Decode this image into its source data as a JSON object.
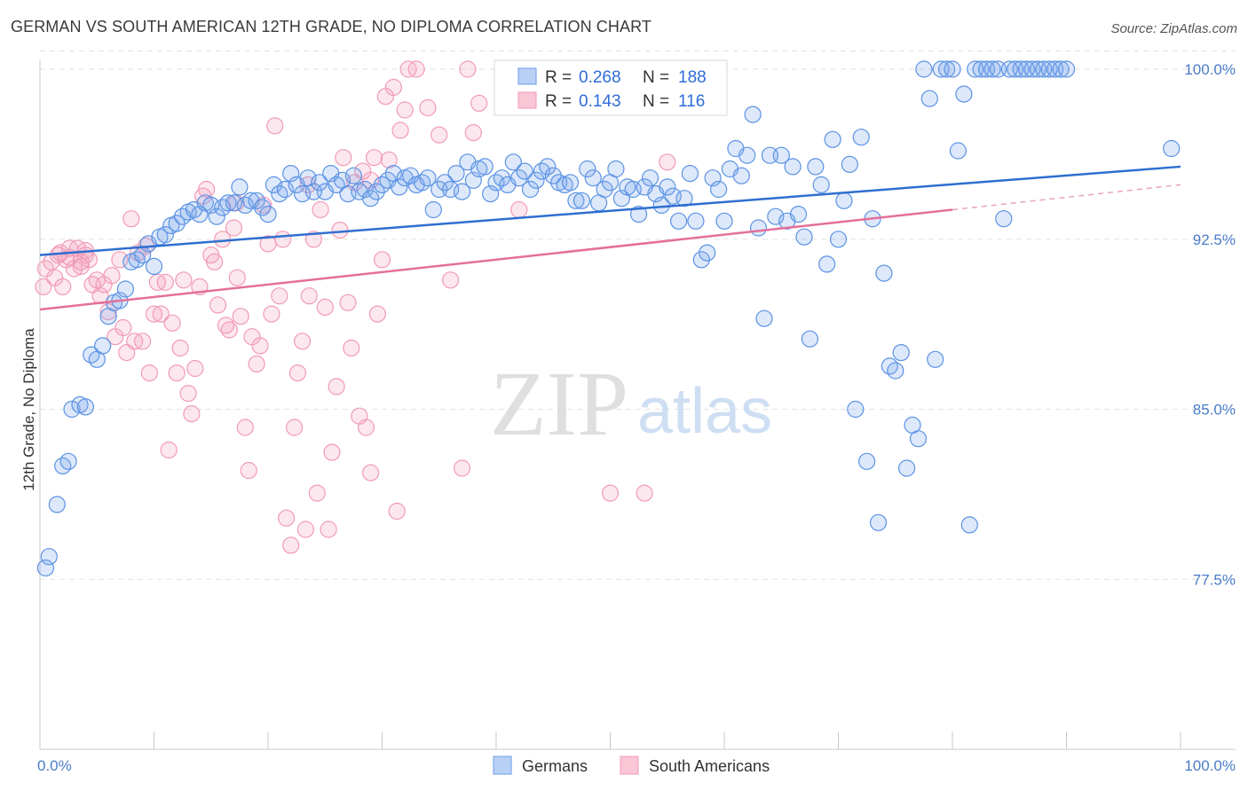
{
  "title": "GERMAN VS SOUTH AMERICAN 12TH GRADE, NO DIPLOMA CORRELATION CHART",
  "source": "Source: ZipAtlas.com",
  "watermark": {
    "zip": "ZIP",
    "atlas": "atlas"
  },
  "legend_box": [
    {
      "r_label": "R =",
      "r_value": "0.268",
      "n_label": "N =",
      "n_value": "188"
    },
    {
      "r_label": "R =",
      "r_value": "0.143",
      "n_label": "N =",
      "n_value": "116"
    }
  ],
  "chart_data": {
    "type": "scatter",
    "title": "GERMAN VS SOUTH AMERICAN 12TH GRADE, NO DIPLOMA CORRELATION CHART",
    "xlabel": "",
    "ylabel": "12th Grade, No Diploma",
    "xlim": [
      0,
      100
    ],
    "ylim": [
      70,
      100.5
    ],
    "x_tick_labels": [
      "0.0%",
      "100.0%"
    ],
    "y_ticks": [
      77.5,
      85.0,
      92.5,
      100.0
    ],
    "y_tick_labels": [
      "77.5%",
      "85.0%",
      "92.5%",
      "100.0%"
    ],
    "grid": true,
    "legend_position": "bottom",
    "colors": {
      "Germans": "#6a9ee8",
      "South Americans": "#f19bb6",
      "Germans_line": "#2e6fd0",
      "South Americans_line": "#e46f9a"
    },
    "series": [
      {
        "name": "Germans",
        "R": 0.268,
        "N": 188,
        "trend": {
          "x0": 0,
          "y0": 91.8,
          "x1": 100,
          "y1": 95.7
        },
        "points": [
          [
            0.5,
            78.0
          ],
          [
            0.8,
            78.5
          ],
          [
            1.5,
            80.8
          ],
          [
            2.0,
            82.5
          ],
          [
            2.5,
            82.7
          ],
          [
            2.8,
            85.0
          ],
          [
            3.5,
            85.2
          ],
          [
            4.0,
            85.1
          ],
          [
            4.5,
            87.4
          ],
          [
            5.0,
            87.2
          ],
          [
            5.5,
            87.8
          ],
          [
            6.0,
            89.1
          ],
          [
            6.5,
            89.7
          ],
          [
            7.0,
            89.8
          ],
          [
            7.5,
            90.3
          ],
          [
            8.0,
            91.5
          ],
          [
            8.5,
            91.6
          ],
          [
            9.0,
            91.8
          ],
          [
            9.5,
            92.3
          ],
          [
            10.0,
            91.3
          ],
          [
            10.5,
            92.6
          ],
          [
            11.0,
            92.7
          ],
          [
            11.5,
            93.1
          ],
          [
            12.0,
            93.2
          ],
          [
            12.5,
            93.5
          ],
          [
            13.0,
            93.7
          ],
          [
            13.5,
            93.8
          ],
          [
            14.0,
            93.6
          ],
          [
            14.5,
            94.1
          ],
          [
            15.0,
            94.0
          ],
          [
            15.5,
            93.5
          ],
          [
            16.0,
            93.9
          ],
          [
            16.5,
            94.1
          ],
          [
            17.0,
            94.1
          ],
          [
            17.5,
            94.8
          ],
          [
            18.0,
            94.0
          ],
          [
            18.5,
            94.2
          ],
          [
            19.0,
            94.2
          ],
          [
            19.5,
            93.9
          ],
          [
            20.0,
            93.6
          ],
          [
            20.5,
            94.9
          ],
          [
            21.0,
            94.5
          ],
          [
            21.5,
            94.7
          ],
          [
            22.0,
            95.4
          ],
          [
            22.5,
            94.9
          ],
          [
            23.0,
            94.5
          ],
          [
            23.5,
            95.2
          ],
          [
            24.0,
            94.6
          ],
          [
            24.5,
            95.0
          ],
          [
            25.0,
            94.6
          ],
          [
            25.5,
            95.4
          ],
          [
            26.0,
            94.9
          ],
          [
            26.5,
            95.1
          ],
          [
            27.0,
            94.5
          ],
          [
            27.5,
            95.3
          ],
          [
            28.0,
            94.6
          ],
          [
            28.5,
            94.7
          ],
          [
            29.0,
            94.3
          ],
          [
            29.5,
            94.6
          ],
          [
            30.0,
            94.9
          ],
          [
            30.5,
            95.1
          ],
          [
            31.0,
            95.4
          ],
          [
            31.5,
            94.8
          ],
          [
            32.0,
            95.2
          ],
          [
            32.5,
            95.3
          ],
          [
            33.0,
            94.9
          ],
          [
            33.5,
            95.0
          ],
          [
            34.0,
            95.2
          ],
          [
            34.5,
            93.8
          ],
          [
            35.0,
            94.7
          ],
          [
            35.5,
            95.0
          ],
          [
            36.0,
            94.7
          ],
          [
            36.5,
            95.4
          ],
          [
            37.0,
            94.6
          ],
          [
            37.5,
            95.9
          ],
          [
            38.0,
            95.1
          ],
          [
            38.5,
            95.6
          ],
          [
            39.0,
            95.7
          ],
          [
            39.5,
            94.5
          ],
          [
            40.0,
            95.0
          ],
          [
            40.5,
            95.2
          ],
          [
            41.0,
            94.9
          ],
          [
            41.5,
            95.9
          ],
          [
            42.0,
            95.2
          ],
          [
            42.5,
            95.5
          ],
          [
            43.0,
            94.7
          ],
          [
            43.5,
            95.1
          ],
          [
            44.0,
            95.5
          ],
          [
            44.5,
            95.7
          ],
          [
            45.0,
            95.3
          ],
          [
            45.5,
            95.0
          ],
          [
            46.0,
            94.9
          ],
          [
            46.5,
            95.0
          ],
          [
            47.0,
            94.2
          ],
          [
            47.5,
            94.2
          ],
          [
            48.0,
            95.6
          ],
          [
            48.5,
            95.2
          ],
          [
            49.0,
            94.1
          ],
          [
            49.5,
            94.7
          ],
          [
            50.0,
            95.0
          ],
          [
            50.5,
            95.6
          ],
          [
            51.0,
            94.3
          ],
          [
            51.5,
            94.8
          ],
          [
            52.0,
            94.7
          ],
          [
            52.5,
            93.6
          ],
          [
            53.0,
            94.8
          ],
          [
            53.5,
            95.2
          ],
          [
            54.0,
            94.5
          ],
          [
            54.5,
            94.0
          ],
          [
            55.0,
            94.8
          ],
          [
            55.5,
            94.4
          ],
          [
            56.0,
            93.3
          ],
          [
            56.5,
            94.3
          ],
          [
            57.0,
            95.4
          ],
          [
            57.5,
            93.3
          ],
          [
            58.0,
            91.6
          ],
          [
            58.5,
            91.9
          ],
          [
            59.0,
            95.2
          ],
          [
            59.5,
            94.7
          ],
          [
            60.0,
            93.3
          ],
          [
            60.5,
            95.6
          ],
          [
            61.0,
            96.5
          ],
          [
            61.5,
            95.3
          ],
          [
            62.0,
            96.2
          ],
          [
            62.5,
            98.0
          ],
          [
            63.0,
            93.0
          ],
          [
            63.5,
            89.0
          ],
          [
            64.0,
            96.2
          ],
          [
            64.5,
            93.5
          ],
          [
            65.0,
            96.2
          ],
          [
            65.5,
            93.3
          ],
          [
            66.0,
            95.7
          ],
          [
            66.5,
            93.6
          ],
          [
            67.0,
            92.6
          ],
          [
            67.5,
            88.1
          ],
          [
            68.0,
            95.7
          ],
          [
            68.5,
            94.9
          ],
          [
            69.0,
            91.4
          ],
          [
            69.5,
            96.9
          ],
          [
            70.0,
            92.5
          ],
          [
            70.5,
            94.2
          ],
          [
            71.0,
            95.8
          ],
          [
            71.5,
            85.0
          ],
          [
            72.0,
            97.0
          ],
          [
            72.5,
            82.7
          ],
          [
            73.0,
            93.4
          ],
          [
            73.5,
            80.0
          ],
          [
            74.0,
            91.0
          ],
          [
            74.5,
            86.9
          ],
          [
            75.0,
            86.7
          ],
          [
            75.5,
            87.5
          ],
          [
            76.0,
            82.4
          ],
          [
            76.5,
            84.3
          ],
          [
            77.0,
            83.7
          ],
          [
            77.5,
            100.0
          ],
          [
            78.0,
            98.7
          ],
          [
            78.5,
            87.2
          ],
          [
            79.0,
            100.0
          ],
          [
            79.5,
            100.0
          ],
          [
            80.0,
            100.0
          ],
          [
            80.5,
            96.4
          ],
          [
            81.0,
            98.9
          ],
          [
            81.5,
            79.9
          ],
          [
            82.0,
            100.0
          ],
          [
            82.5,
            100.0
          ],
          [
            83.0,
            100.0
          ],
          [
            83.5,
            100.0
          ],
          [
            84.0,
            100.0
          ],
          [
            84.5,
            93.4
          ],
          [
            85.0,
            100.0
          ],
          [
            85.5,
            100.0
          ],
          [
            86.0,
            100.0
          ],
          [
            86.5,
            100.0
          ],
          [
            87.0,
            100.0
          ],
          [
            87.5,
            100.0
          ],
          [
            88.0,
            100.0
          ],
          [
            88.5,
            100.0
          ],
          [
            89.0,
            100.0
          ],
          [
            89.5,
            100.0
          ],
          [
            90.0,
            100.0
          ],
          [
            99.2,
            96.5
          ]
        ]
      },
      {
        "name": "South Americans",
        "R": 0.143,
        "N": 116,
        "trend": {
          "x0": 0,
          "y0": 89.4,
          "x1": 80,
          "y1": 93.8,
          "dash_to_x": 100,
          "dash_to_y": 94.9
        },
        "points": [
          [
            0.3,
            90.4
          ],
          [
            0.5,
            91.2
          ],
          [
            1.0,
            91.5
          ],
          [
            1.3,
            90.8
          ],
          [
            1.6,
            91.8
          ],
          [
            2.0,
            90.4
          ],
          [
            2.3,
            91.6
          ],
          [
            2.6,
            91.7
          ],
          [
            3.0,
            91.2
          ],
          [
            3.3,
            92.1
          ],
          [
            3.6,
            91.3
          ],
          [
            4.0,
            91.8
          ],
          [
            4.3,
            91.6
          ],
          [
            4.6,
            90.5
          ],
          [
            5.0,
            90.7
          ],
          [
            5.3,
            90.0
          ],
          [
            5.6,
            90.5
          ],
          [
            6.0,
            89.3
          ],
          [
            6.3,
            90.9
          ],
          [
            6.6,
            88.2
          ],
          [
            7.0,
            91.6
          ],
          [
            7.3,
            88.6
          ],
          [
            7.6,
            87.5
          ],
          [
            8.0,
            93.4
          ],
          [
            8.3,
            88.0
          ],
          [
            8.6,
            91.9
          ],
          [
            9.0,
            88.0
          ],
          [
            9.3,
            92.2
          ],
          [
            9.6,
            86.6
          ],
          [
            10.0,
            89.2
          ],
          [
            10.3,
            90.6
          ],
          [
            10.6,
            89.2
          ],
          [
            11.0,
            90.6
          ],
          [
            11.3,
            83.2
          ],
          [
            11.6,
            88.8
          ],
          [
            12.0,
            86.6
          ],
          [
            12.3,
            87.7
          ],
          [
            12.6,
            90.7
          ],
          [
            13.0,
            85.7
          ],
          [
            13.3,
            84.8
          ],
          [
            13.6,
            86.8
          ],
          [
            14.0,
            90.4
          ],
          [
            14.3,
            94.4
          ],
          [
            14.6,
            94.7
          ],
          [
            15.0,
            91.8
          ],
          [
            15.3,
            91.5
          ],
          [
            15.6,
            89.6
          ],
          [
            16.0,
            92.5
          ],
          [
            16.3,
            88.7
          ],
          [
            16.6,
            88.5
          ],
          [
            17.0,
            93.0
          ],
          [
            17.3,
            90.8
          ],
          [
            17.6,
            89.1
          ],
          [
            18.0,
            84.2
          ],
          [
            18.3,
            82.3
          ],
          [
            18.6,
            88.2
          ],
          [
            19.0,
            87.0
          ],
          [
            19.3,
            87.8
          ],
          [
            19.6,
            94.0
          ],
          [
            20.0,
            92.3
          ],
          [
            20.3,
            89.2
          ],
          [
            20.6,
            97.5
          ],
          [
            21.0,
            90.0
          ],
          [
            21.3,
            92.5
          ],
          [
            21.6,
            80.2
          ],
          [
            22.0,
            79.0
          ],
          [
            22.3,
            84.2
          ],
          [
            22.6,
            86.6
          ],
          [
            23.0,
            88.0
          ],
          [
            23.3,
            79.7
          ],
          [
            23.6,
            90.0
          ],
          [
            24.0,
            92.5
          ],
          [
            24.3,
            81.3
          ],
          [
            24.6,
            93.8
          ],
          [
            25.0,
            89.5
          ],
          [
            25.3,
            79.7
          ],
          [
            25.6,
            83.1
          ],
          [
            26.0,
            86.0
          ],
          [
            26.3,
            92.9
          ],
          [
            26.6,
            96.1
          ],
          [
            27.0,
            89.7
          ],
          [
            27.3,
            87.7
          ],
          [
            27.6,
            95.0
          ],
          [
            28.0,
            84.7
          ],
          [
            28.3,
            95.5
          ],
          [
            28.6,
            84.2
          ],
          [
            29.0,
            82.2
          ],
          [
            29.3,
            96.1
          ],
          [
            29.6,
            89.2
          ],
          [
            30.0,
            91.6
          ],
          [
            30.3,
            98.8
          ],
          [
            30.6,
            96.0
          ],
          [
            31.0,
            99.2
          ],
          [
            31.3,
            80.5
          ],
          [
            31.6,
            97.3
          ],
          [
            32.0,
            98.2
          ],
          [
            32.3,
            100.0
          ],
          [
            33.0,
            100.0
          ],
          [
            34.0,
            98.3
          ],
          [
            35.0,
            97.1
          ],
          [
            36.0,
            90.7
          ],
          [
            37.0,
            82.4
          ],
          [
            37.5,
            100.0
          ],
          [
            38.0,
            97.2
          ],
          [
            38.5,
            98.5
          ],
          [
            42.0,
            93.8
          ],
          [
            50.0,
            81.3
          ],
          [
            53.0,
            81.3
          ],
          [
            55.0,
            95.9
          ],
          [
            4.0,
            92.0
          ],
          [
            3.6,
            91.5
          ],
          [
            2.6,
            92.1
          ],
          [
            1.8,
            91.9
          ],
          [
            17.2,
            94.1
          ],
          [
            23.5,
            94.9
          ],
          [
            29.0,
            95.1
          ]
        ]
      }
    ]
  },
  "bottom_legend": [
    {
      "label": "Germans"
    },
    {
      "label": "South Americans"
    }
  ]
}
